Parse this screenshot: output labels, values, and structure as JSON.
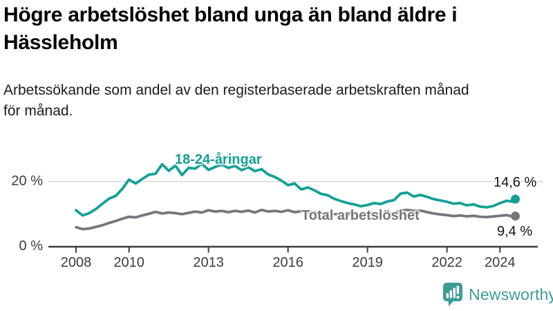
{
  "header": {
    "title": "Högre arbetslöshet bland unga än bland äldre i\nHässleholm",
    "subtitle": "Arbetssökande som andel av den registerbaserade arbetskraften månad\nför månad."
  },
  "colors": {
    "youth_line": "#14A096",
    "total_line": "#76767B",
    "gridline": "#D9D9D9",
    "axis": "#3C3C3C",
    "tick_text": "#3C3C3C",
    "value_text": "#111111",
    "title_text": "#000000",
    "body_text": "#1B1B1B",
    "brand_teal": "#3E9C95",
    "background": "#FFFFFF"
  },
  "chart_data": {
    "type": "line",
    "xlabel": "",
    "ylabel": "",
    "ylim": [
      0,
      30
    ],
    "xlim": [
      2006.95,
      2025.0
    ],
    "grid": "y-20-only",
    "legend_position": "inline-labels",
    "yticks": [
      {
        "value": 0,
        "label": "0 %"
      },
      {
        "value": 20,
        "label": "20 %"
      }
    ],
    "xticks": [
      {
        "value": 2008,
        "label": "2008"
      },
      {
        "value": 2010,
        "label": "2010"
      },
      {
        "value": 2013,
        "label": "2013"
      },
      {
        "value": 2016,
        "label": "2016"
      },
      {
        "value": 2019,
        "label": "2019"
      },
      {
        "value": 2022,
        "label": "2022"
      },
      {
        "value": 2024,
        "label": "2024"
      }
    ],
    "x": [
      2008,
      2008.25,
      2008.5,
      2008.75,
      2009,
      2009.25,
      2009.5,
      2009.75,
      2010,
      2010.25,
      2010.5,
      2010.75,
      2011,
      2011.25,
      2011.5,
      2011.75,
      2012,
      2012.25,
      2012.5,
      2012.75,
      2013,
      2013.25,
      2013.5,
      2013.75,
      2014,
      2014.25,
      2014.5,
      2014.75,
      2015,
      2015.25,
      2015.5,
      2015.75,
      2016,
      2016.25,
      2016.5,
      2016.75,
      2017,
      2017.25,
      2017.5,
      2017.75,
      2018,
      2018.25,
      2018.5,
      2018.75,
      2019,
      2019.25,
      2019.5,
      2019.75,
      2020,
      2020.25,
      2020.5,
      2020.75,
      2021,
      2021.25,
      2021.5,
      2021.75,
      2022,
      2022.25,
      2022.5,
      2022.75,
      2023,
      2023.25,
      2023.5,
      2023.75,
      2024,
      2024.25,
      2024.5,
      2024.58
    ],
    "series": [
      {
        "name": "18-24-åringar",
        "color": "#14A096",
        "end_label": "14,6 %",
        "end_value": 14.6,
        "values": [
          11.2,
          9.6,
          10.3,
          11.6,
          13.2,
          14.8,
          15.6,
          17.8,
          20.6,
          19.4,
          20.8,
          22.1,
          22.4,
          25.3,
          23.3,
          24.9,
          22.0,
          24.2,
          24.0,
          25.4,
          23.6,
          24.5,
          25.2,
          24.2,
          24.8,
          23.5,
          24.4,
          23.2,
          23.8,
          22.2,
          21.4,
          20.3,
          18.9,
          19.4,
          17.6,
          18.2,
          17.3,
          16.2,
          15.8,
          14.7,
          14.0,
          13.4,
          13.0,
          12.4,
          12.8,
          13.4,
          13.1,
          13.9,
          14.3,
          16.3,
          16.6,
          15.4,
          15.9,
          15.3,
          14.6,
          14.2,
          13.8,
          13.2,
          13.4,
          12.7,
          13.0,
          12.3,
          12.1,
          12.5,
          13.4,
          14.1,
          13.8,
          14.6
        ]
      },
      {
        "name": "Total arbetslöshet",
        "color": "#76767B",
        "end_label": "9,4 %",
        "end_value": 9.4,
        "values": [
          6.0,
          5.4,
          5.6,
          6.1,
          6.6,
          7.3,
          7.9,
          8.6,
          9.2,
          9.0,
          9.6,
          10.1,
          10.7,
          10.2,
          10.5,
          10.3,
          10.0,
          10.4,
          10.8,
          10.5,
          11.2,
          10.8,
          11.0,
          10.6,
          11.0,
          10.7,
          11.1,
          10.5,
          11.3,
          10.8,
          11.0,
          10.7,
          11.2,
          10.6,
          10.9,
          10.4,
          10.6,
          10.2,
          10.4,
          10.0,
          10.1,
          9.7,
          9.9,
          9.5,
          9.7,
          9.9,
          10.0,
          10.2,
          10.3,
          11.1,
          11.3,
          11.0,
          11.1,
          10.6,
          10.2,
          9.9,
          9.7,
          9.4,
          9.6,
          9.3,
          9.5,
          9.2,
          9.1,
          9.3,
          9.5,
          9.7,
          9.2,
          9.4
        ]
      }
    ]
  },
  "footer": {
    "brand": "Newsworthy"
  }
}
